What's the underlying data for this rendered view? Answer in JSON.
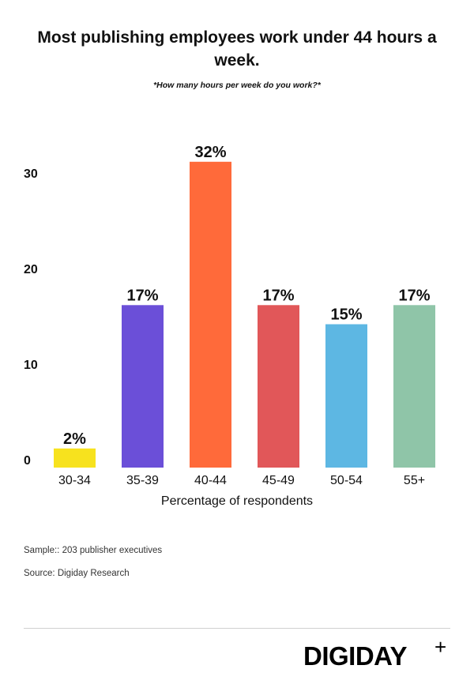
{
  "header": {
    "title": "Most publishing employees work under 44 hours a week.",
    "subtitle": "*How many hours per week do you work?*"
  },
  "chart_data": {
    "type": "bar",
    "title": "Most publishing employees work under 44 hours a week.",
    "subtitle": "*How many hours per week do you work?*",
    "categories": [
      "30-34",
      "35-39",
      "40-44",
      "45-49",
      "50-54",
      "55+"
    ],
    "values": [
      2,
      17,
      32,
      17,
      15,
      17
    ],
    "value_labels": [
      "2%",
      "17%",
      "32%",
      "17%",
      "15%",
      "17%"
    ],
    "colors": [
      "#f7e21e",
      "#6b4fd8",
      "#ff6a3a",
      "#e15759",
      "#5db7e3",
      "#8fc5a8"
    ],
    "xlabel": "Percentage of respondents",
    "ylabel": "",
    "ylim": [
      0,
      32
    ],
    "yticks": [
      0,
      10,
      20,
      30
    ],
    "grid": false,
    "legend": "none"
  },
  "footer": {
    "sample": "Sample:: 203 publisher executives",
    "source": "Source: Digiday Research"
  },
  "brand": {
    "logo_text": "DIGIDAY",
    "logo_plus": "+"
  }
}
